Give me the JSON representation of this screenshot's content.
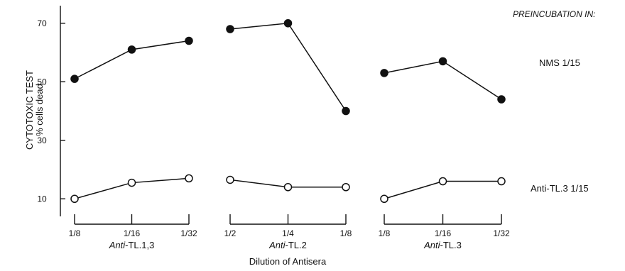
{
  "chart_data": {
    "type": "line",
    "ylabel": [
      "CYTOTOXIC TEST",
      "% cells dead"
    ],
    "xlabel": "Dilution of Antisera",
    "ylim": [
      4,
      76
    ],
    "yticks": [
      10,
      30,
      50,
      70
    ],
    "legend_title": "PREINCUBATION IN:",
    "series": [
      {
        "name": "NMS 1/15",
        "marker": "filled-circle"
      },
      {
        "name": "Anti-TL.3 1/15",
        "marker": "open-circle"
      }
    ],
    "groups": [
      {
        "label": "Anti-TL.1,3",
        "categories": [
          "1/8",
          "1/16",
          "1/32"
        ],
        "values": {
          "NMS 1/15": [
            51,
            61,
            64
          ],
          "Anti-TL.3 1/15": [
            10,
            15.5,
            17
          ]
        }
      },
      {
        "label": "Anti-TL.2",
        "categories": [
          "1/2",
          "1/4",
          "1/8"
        ],
        "values": {
          "NMS 1/15": [
            68,
            70,
            40
          ],
          "Anti-TL.3 1/15": [
            16.5,
            14,
            14
          ]
        }
      },
      {
        "label": "Anti-TL.3",
        "categories": [
          "1/8",
          "1/16",
          "1/32"
        ],
        "values": {
          "NMS 1/15": [
            53,
            57,
            44
          ],
          "Anti-TL.3 1/15": [
            10,
            16,
            16
          ]
        }
      }
    ]
  }
}
